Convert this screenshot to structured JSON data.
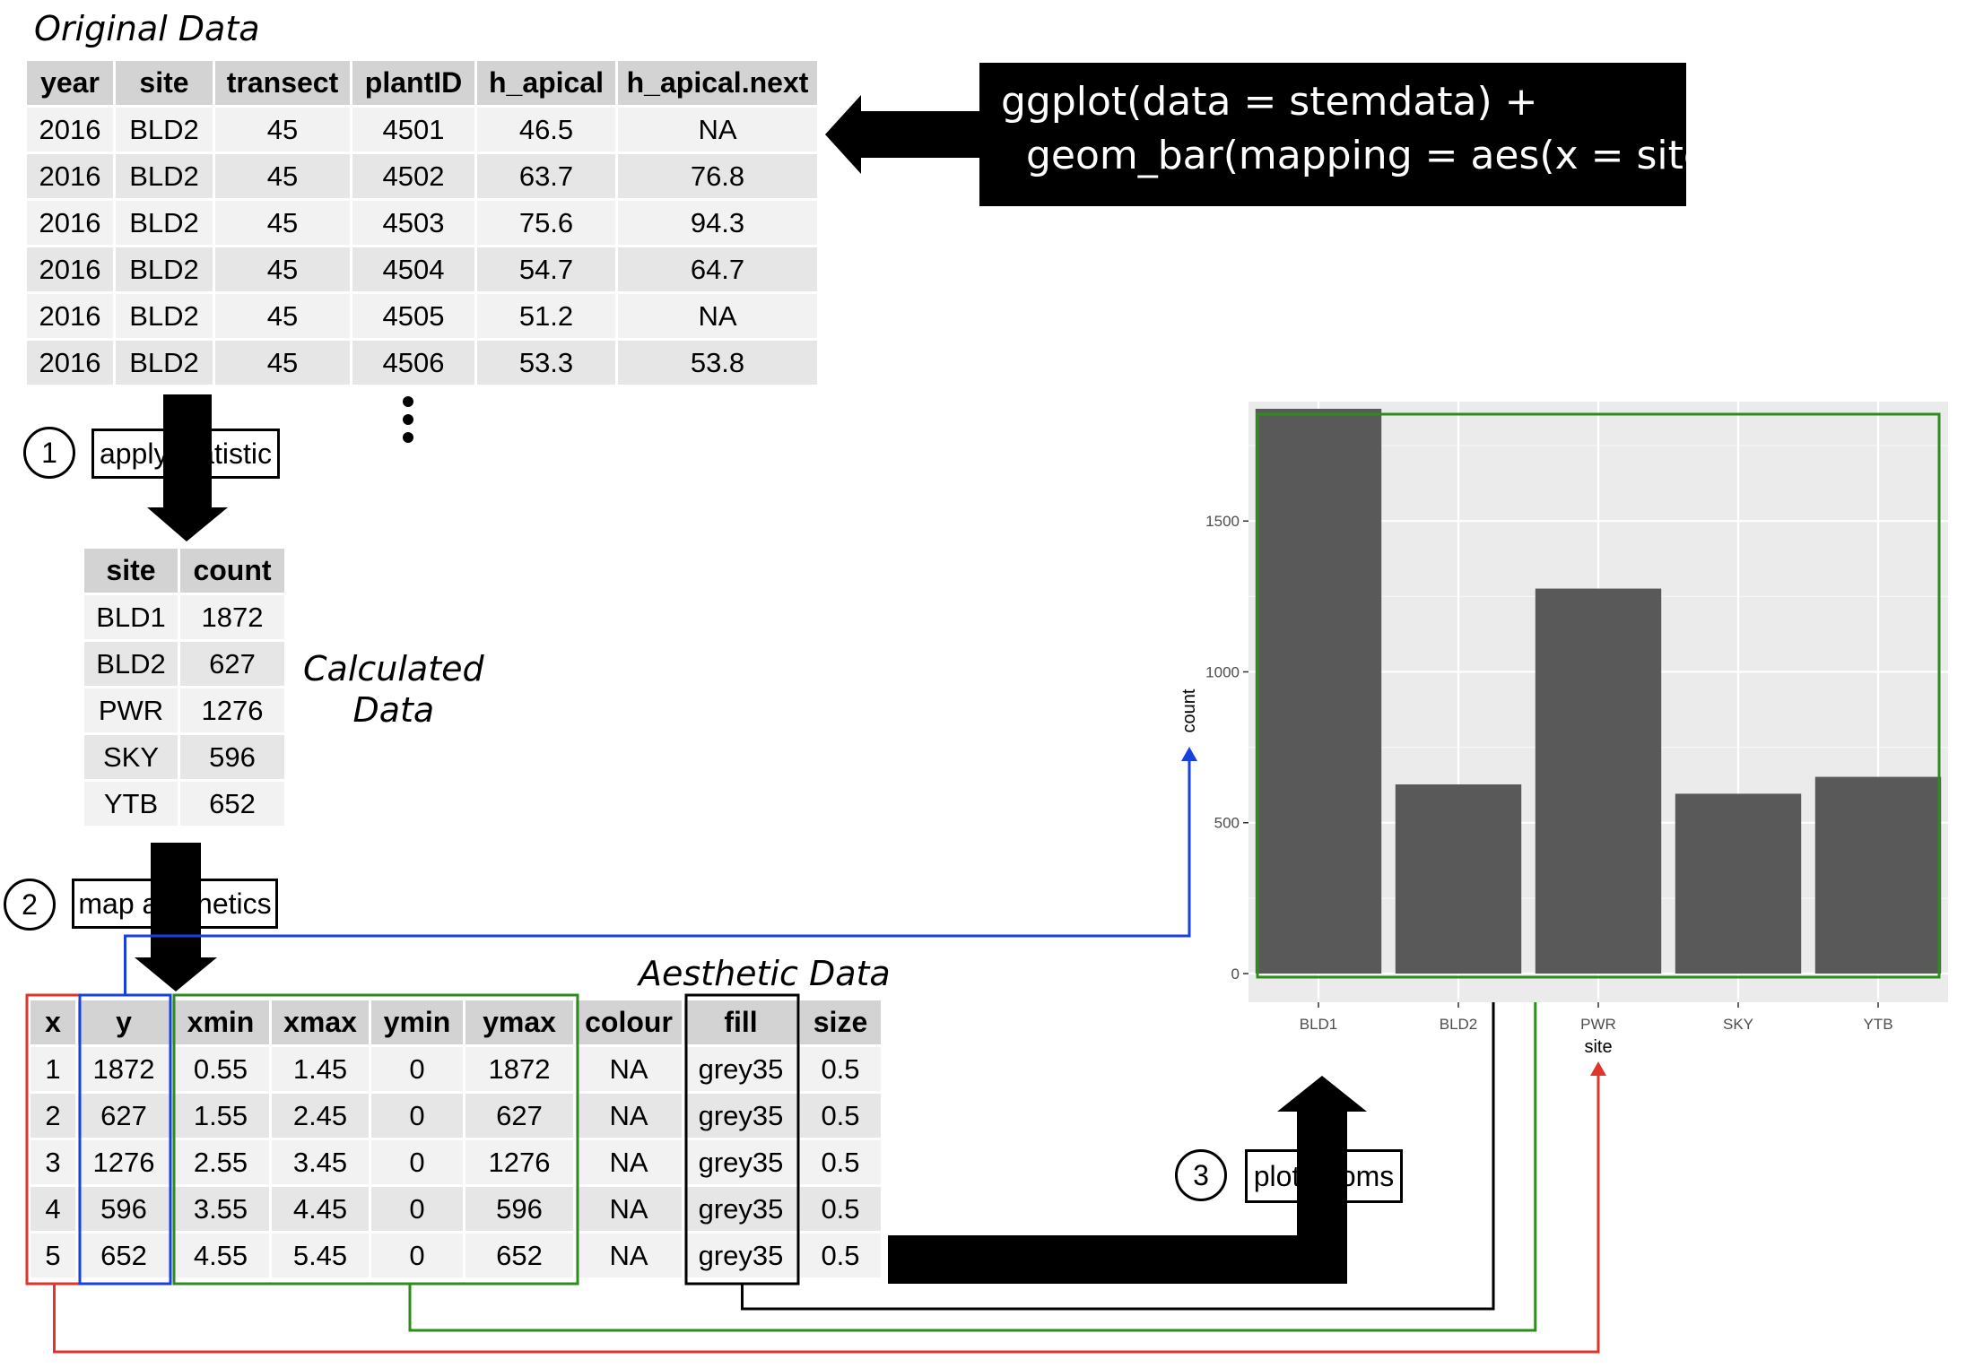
{
  "original": {
    "title": "Original Data",
    "headers": [
      "year",
      "site",
      "transect",
      "plantID",
      "h_apical",
      "h_apical.next"
    ],
    "rows": [
      [
        "2016",
        "BLD2",
        "45",
        "4501",
        "46.5",
        "NA"
      ],
      [
        "2016",
        "BLD2",
        "45",
        "4502",
        "63.7",
        "76.8"
      ],
      [
        "2016",
        "BLD2",
        "45",
        "4503",
        "75.6",
        "94.3"
      ],
      [
        "2016",
        "BLD2",
        "45",
        "4504",
        "54.7",
        "64.7"
      ],
      [
        "2016",
        "BLD2",
        "45",
        "4505",
        "51.2",
        "NA"
      ],
      [
        "2016",
        "BLD2",
        "45",
        "4506",
        "53.3",
        "53.8"
      ]
    ]
  },
  "code": {
    "line1": "ggplot(data = stemdata) +",
    "line2": "  geom_bar(mapping = aes(x = site))"
  },
  "steps": [
    {
      "number": "1",
      "label": "apply statistic"
    },
    {
      "number": "2",
      "label": "map aesthetics"
    },
    {
      "number": "3",
      "label": "plot geoms"
    }
  ],
  "calculated": {
    "title_line1": "Calculated",
    "title_line2": "Data",
    "headers": [
      "site",
      "count"
    ],
    "rows": [
      [
        "BLD1",
        "1872"
      ],
      [
        "BLD2",
        "627"
      ],
      [
        "PWR",
        "1276"
      ],
      [
        "SKY",
        "596"
      ],
      [
        "YTB",
        "652"
      ]
    ]
  },
  "aesthetic": {
    "title": "Aesthetic Data",
    "headers": [
      "x",
      "y",
      "xmin",
      "xmax",
      "ymin",
      "ymax",
      "colour",
      "fill",
      "size"
    ],
    "rows": [
      [
        "1",
        "1872",
        "0.55",
        "1.45",
        "0",
        "1872",
        "NA",
        "grey35",
        "0.5"
      ],
      [
        "2",
        "627",
        "1.55",
        "2.45",
        "0",
        "627",
        "NA",
        "grey35",
        "0.5"
      ],
      [
        "3",
        "1276",
        "2.55",
        "3.45",
        "0",
        "1276",
        "NA",
        "grey35",
        "0.5"
      ],
      [
        "4",
        "596",
        "3.55",
        "4.45",
        "0",
        "596",
        "NA",
        "grey35",
        "0.5"
      ],
      [
        "5",
        "652",
        "4.55",
        "5.45",
        "0",
        "652",
        "NA",
        "grey35",
        "0.5"
      ]
    ]
  },
  "colors": {
    "x_highlight": "#e0352b",
    "y_highlight": "#1a3fe0",
    "geom_highlight": "#2e8b1e",
    "fill_highlight": "#000000",
    "bar_fill": "#595959",
    "panel_bg": "#ebebeb"
  },
  "chart_data": {
    "type": "bar",
    "categories": [
      "BLD1",
      "BLD2",
      "PWR",
      "SKY",
      "YTB"
    ],
    "values": [
      1872,
      627,
      1276,
      596,
      652
    ],
    "xlabel": "site",
    "ylabel": "count",
    "yticks": [
      0,
      500,
      1000,
      1500
    ],
    "ylim": [
      0,
      1872
    ],
    "grid": true
  }
}
